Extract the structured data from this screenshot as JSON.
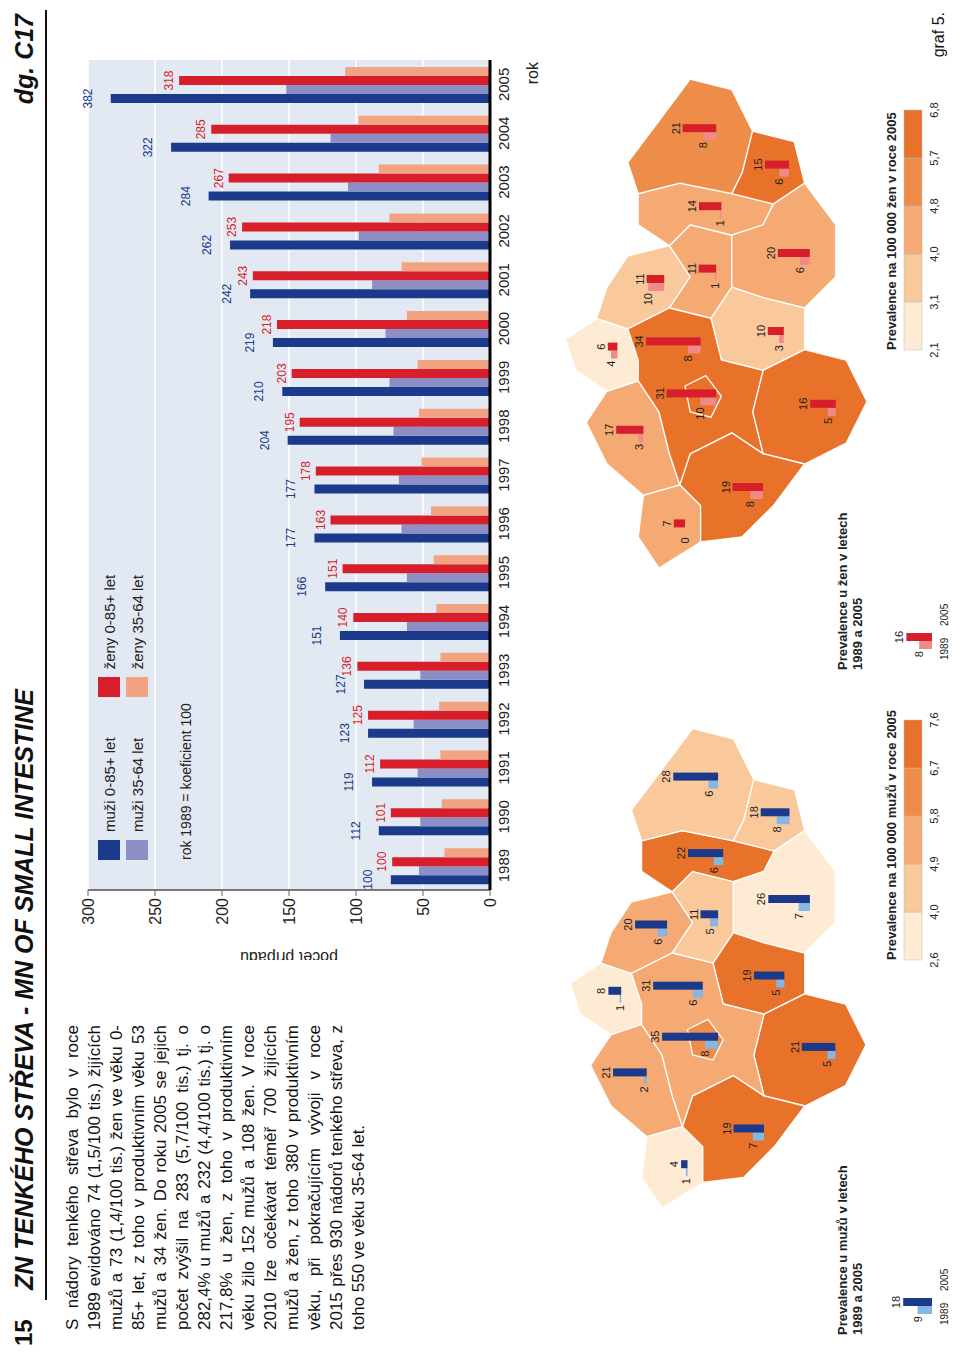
{
  "page": "15",
  "header": {
    "title": "ZN TENKÉHO STŘEVA - MN OF SMALL INTESTINE",
    "code": "dg. C17"
  },
  "text": "S nádory tenkého střeva bylo v roce 1989 evidováno 74 (1,5/100 tis.) žijících mužů a 73 (1,4/100 tis.) žen ve věku 0-85+ let, z toho v produktivním věku 53 mužů a 34 žen. Do roku 2005 se jejich počet zvýšil na 283 (5,7/100 tis.) tj. o 282,4% u mužů a 232 (4,4/100 tis.) tj. o 217,8% u žen, z toho v produktivním věku žilo 152 mužů a 108 žen. V roce 2010 lze očekávat téměř 700 žijících mužů a žen, z toho 380 v produktivním věku, při pokračujícím vývoji v roce 2015 přes 930 nádorů tenkého střeva, z toho 550 ve věku 35-64 let.",
  "chart_data": {
    "type": "bar",
    "annotation": "rok 1989 = koeficient 100",
    "x_label": "rok",
    "y_label": "počet případů",
    "categories": [
      "1989",
      "1990",
      "1991",
      "1992",
      "1993",
      "1994",
      "1995",
      "1996",
      "1997",
      "1998",
      "1999",
      "2000",
      "2001",
      "2002",
      "2003",
      "2004",
      "2005"
    ],
    "series": [
      {
        "name": "muži 0-85+ let",
        "color": "#1b3a8c",
        "values": [
          74,
          83,
          88,
          91,
          94,
          112,
          123,
          131,
          131,
          151,
          155,
          162,
          179,
          194,
          210,
          238,
          283
        ],
        "index": [
          100,
          112,
          119,
          123,
          127,
          151,
          166,
          177,
          177,
          204,
          210,
          219,
          242,
          262,
          284,
          322,
          382
        ]
      },
      {
        "name": "muži 35-64 let",
        "color": "#8b8fc6",
        "values": [
          53,
          52,
          54,
          57,
          52,
          62,
          62,
          66,
          68,
          72,
          75,
          78,
          88,
          98,
          106,
          119,
          152
        ]
      },
      {
        "name": "ženy 0-85+ let",
        "color": "#d71f2b",
        "values": [
          73,
          74,
          82,
          91,
          99,
          102,
          110,
          119,
          130,
          142,
          148,
          159,
          177,
          185,
          195,
          208,
          232
        ],
        "index": [
          100,
          101,
          112,
          125,
          136,
          140,
          151,
          163,
          178,
          195,
          203,
          218,
          243,
          253,
          267,
          285,
          318
        ]
      },
      {
        "name": "ženy 35-64 let",
        "color": "#f2a382",
        "values": [
          34,
          36,
          37,
          38,
          37,
          40,
          42,
          44,
          51,
          53,
          54,
          62,
          66,
          75,
          83,
          98,
          108
        ]
      }
    ],
    "ylim": [
      0,
      300
    ],
    "yticks": [
      0,
      50,
      100,
      150,
      200,
      250,
      300
    ],
    "grid": true,
    "legend": "upper left"
  },
  "maps": [
    {
      "type": "map",
      "title": "Prevalence u mužů v letech 1989 a 2005",
      "legend_example": {
        "values": [
          9,
          18
        ],
        "labels": [
          "1989",
          "2005"
        ]
      },
      "colors": [
        "#86b6e3",
        "#1b3a8c"
      ],
      "scale_title": "Prevalence na 100 000 mužů v roce 2005",
      "scale_breaks": [
        {
          "value": 2.6,
          "label": "2,6"
        },
        {
          "value": 4.0,
          "label": "4,0"
        },
        {
          "value": 4.9,
          "label": "4,9"
        },
        {
          "value": 5.8,
          "label": "5,8"
        },
        {
          "value": 6.7,
          "label": "6,7"
        },
        {
          "value": 7.6,
          "label": "7,6"
        }
      ],
      "scale_colors": [
        "#fdebd3",
        "#f9c99b",
        "#f4aa72",
        "#ee8d4a",
        "#e8722a"
      ],
      "regions": [
        {
          "values": [
            1,
            4
          ],
          "rate": 3.0
        },
        {
          "values": [
            2,
            21
          ],
          "rate": 5.0
        },
        {
          "values": [
            1,
            8
          ],
          "rate": 3.5
        },
        {
          "values": [
            6,
            20
          ],
          "rate": 5.5
        },
        {
          "values": [
            5,
            11
          ],
          "rate": 4.5
        },
        {
          "values": [
            6,
            22
          ],
          "rate": 7.2
        },
        {
          "values": [
            6,
            28
          ],
          "rate": 4.5
        },
        {
          "values": [
            8,
            18
          ],
          "rate": 4.6
        },
        {
          "values": [
            7,
            26
          ],
          "rate": 3.8
        },
        {
          "values": [
            5,
            19
          ],
          "rate": 7.0
        },
        {
          "values": [
            5,
            21
          ],
          "rate": 7.0
        },
        {
          "values": [
            7,
            19
          ],
          "rate": 7.0
        },
        {
          "values": [
            6,
            31
          ],
          "rate": 5.6
        },
        {
          "values": [
            8,
            35
          ],
          "rate": 6.0
        }
      ]
    },
    {
      "type": "map",
      "title": "Prevalence u žen v letech 1989 a 2005",
      "legend_example": {
        "values": [
          8,
          16
        ],
        "labels": [
          "1989",
          "2005"
        ]
      },
      "colors": [
        "#f08a8a",
        "#d71f2b"
      ],
      "scale_title": "Prevalence na 100 000 žen v roce 2005",
      "scale_breaks": [
        {
          "value": 2.1,
          "label": "2,1"
        },
        {
          "value": 3.1,
          "label": "3,1"
        },
        {
          "value": 4.0,
          "label": "4,0"
        },
        {
          "value": 4.8,
          "label": "4,8"
        },
        {
          "value": 5.7,
          "label": "5,7"
        },
        {
          "value": 6.8,
          "label": "6,8"
        }
      ],
      "scale_colors": [
        "#fdebd3",
        "#f9c99b",
        "#f4aa72",
        "#ee8d4a",
        "#e8722a"
      ],
      "regions": [
        {
          "values": [
            0,
            7
          ],
          "rate": 4.2
        },
        {
          "values": [
            3,
            17
          ],
          "rate": 4.2
        },
        {
          "values": [
            4,
            6
          ],
          "rate": 2.5
        },
        {
          "values": [
            10,
            11
          ],
          "rate": 3.6
        },
        {
          "values": [
            1,
            11
          ],
          "rate": 4.0
        },
        {
          "values": [
            1,
            14
          ],
          "rate": 4.4
        },
        {
          "values": [
            8,
            21
          ],
          "rate": 5.0
        },
        {
          "values": [
            6,
            15
          ],
          "rate": 6.0
        },
        {
          "values": [
            6,
            20
          ],
          "rate": 4.5
        },
        {
          "values": [
            3,
            10
          ],
          "rate": 3.5
        },
        {
          "values": [
            5,
            16
          ],
          "rate": 6.0
        },
        {
          "values": [
            8,
            19
          ],
          "rate": 6.0
        },
        {
          "values": [
            8,
            34
          ],
          "rate": 6.2
        },
        {
          "values": [
            10,
            31
          ],
          "rate": 6.5
        }
      ]
    }
  ],
  "footer": "graf 5."
}
